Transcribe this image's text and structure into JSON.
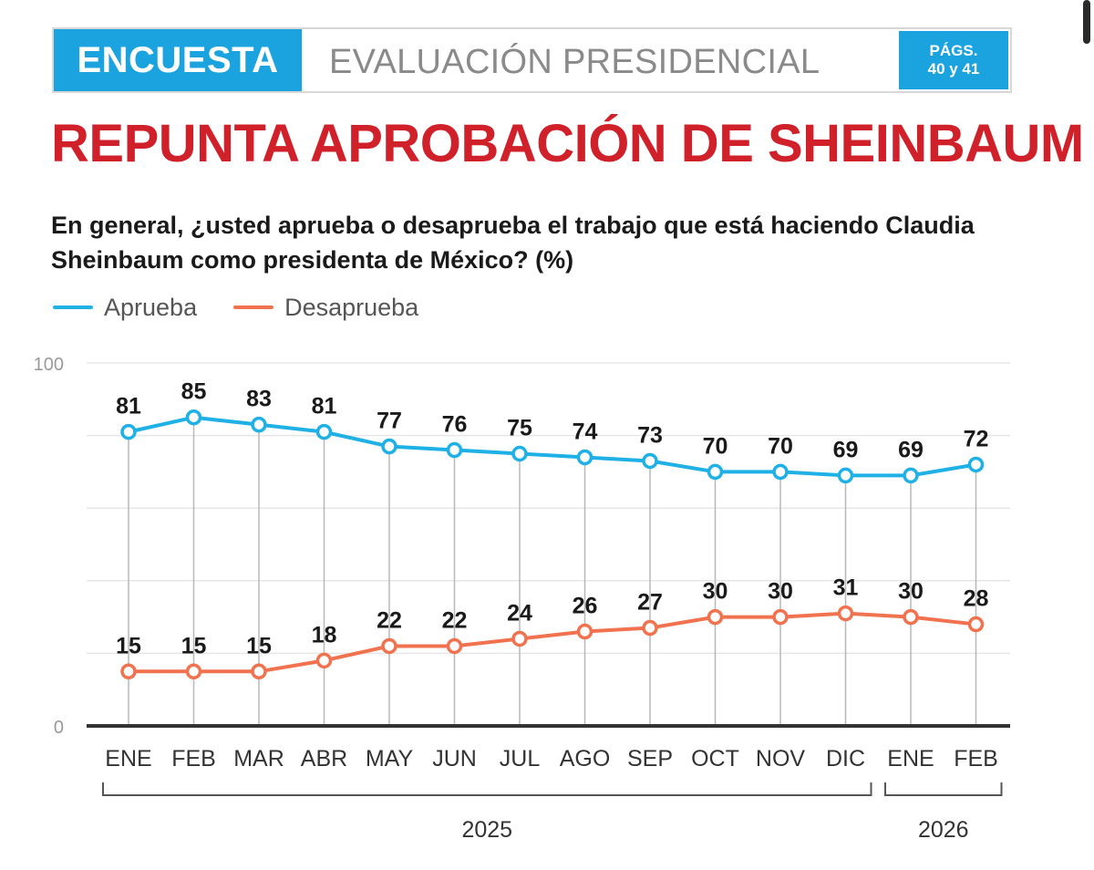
{
  "banner": {
    "tag": "ENCUESTA",
    "title": "EVALUACIÓN PRESIDENCIAL",
    "pages_line1": "PÁGS.",
    "pages_line2": "40 y 41"
  },
  "colors": {
    "accent_blue": "#1aa3de",
    "headline_red": "#d0202a",
    "aprueba": "#1fb0e6",
    "desaprueba": "#f0724f"
  },
  "chart_data": {
    "type": "line",
    "title": "REPUNTA APROBACIÓN DE SHEINBAUM",
    "subtitle": "En general, ¿usted aprueba o desaprueba el trabajo que está haciendo Claudia Sheinbaum como presidenta de México? (%)",
    "categories": [
      "ENE",
      "FEB",
      "MAR",
      "ABR",
      "MAY",
      "JUN",
      "JUL",
      "AGO",
      "SEP",
      "OCT",
      "NOV",
      "DIC",
      "ENE",
      "FEB"
    ],
    "series": [
      {
        "name": "Aprueba",
        "color": "#1fb0e6",
        "values": [
          81,
          85,
          83,
          81,
          77,
          76,
          75,
          74,
          73,
          70,
          70,
          69,
          69,
          72
        ]
      },
      {
        "name": "Desaprueba",
        "color": "#f0724f",
        "values": [
          15,
          15,
          15,
          18,
          22,
          22,
          24,
          26,
          27,
          30,
          30,
          31,
          30,
          28
        ]
      }
    ],
    "ylim": [
      0,
      100
    ],
    "yticks": [
      0,
      100
    ],
    "grid": true,
    "legend": "top-left",
    "year_groups": [
      {
        "label": "2025",
        "from": 0,
        "to": 11
      },
      {
        "label": "2026",
        "from": 12,
        "to": 13
      }
    ]
  }
}
